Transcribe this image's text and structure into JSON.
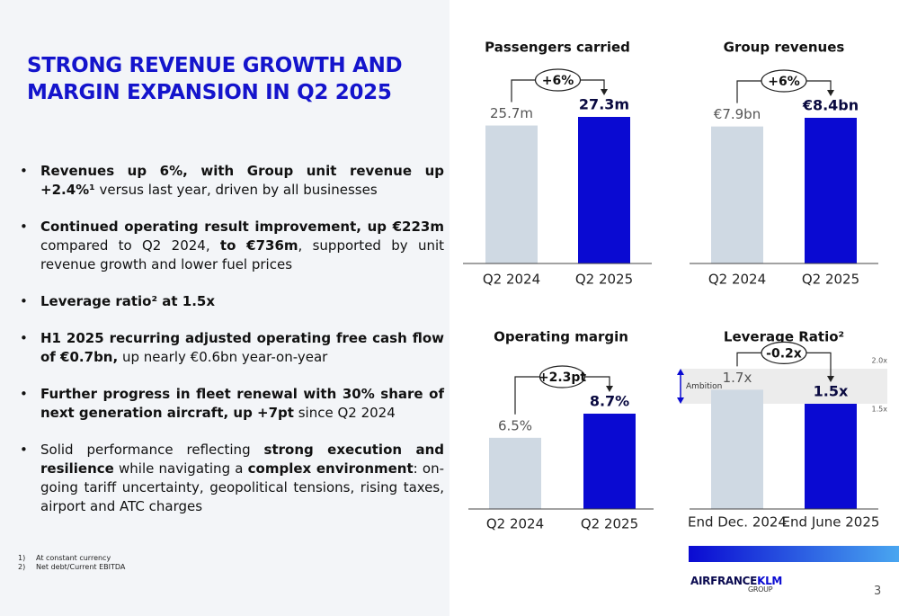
{
  "title": "STRONG REVENUE GROWTH AND MARGIN EXPANSION IN Q2 2025",
  "bullets": [
    [
      {
        "text": "Revenues up 6%, with Group unit revenue up +2.4%¹",
        "bold": true
      },
      {
        "text": " versus last year, driven by all businesses",
        "bold": false
      }
    ],
    [
      {
        "text": "Continued operating result improvement, up €223m",
        "bold": true
      },
      {
        "text": " compared to Q2 2024, ",
        "bold": false
      },
      {
        "text": "to €736m",
        "bold": true
      },
      {
        "text": ", supported by unit revenue growth and lower fuel prices",
        "bold": false
      }
    ],
    [
      {
        "text": "Leverage ratio² at 1.5x",
        "bold": true
      }
    ],
    [
      {
        "text": "H1 2025 recurring adjusted operating free cash flow of €0.7bn,",
        "bold": true
      },
      {
        "text": " up nearly €0.6bn year-on-year",
        "bold": false
      }
    ],
    [
      {
        "text": "Further progress in fleet renewal with 30% share of next generation aircraft, up +7pt",
        "bold": true
      },
      {
        "text": " since Q2 2024",
        "bold": false
      }
    ],
    [
      {
        "text": "Solid performance reflecting ",
        "bold": false
      },
      {
        "text": "strong execution and resilience",
        "bold": true
      },
      {
        "text": " while navigating a ",
        "bold": false
      },
      {
        "text": "complex environment",
        "bold": true
      },
      {
        "text": ": on-going tariff uncertainty, geopolitical tensions, rising taxes, airport and ATC charges",
        "bold": false
      }
    ]
  ],
  "footnotes": [
    {
      "mark": "1)",
      "text": "At constant currency"
    },
    {
      "mark": "2)",
      "text": "Net debt/Current EBITDA"
    }
  ],
  "logo": {
    "brand": "AIRFRANCE",
    "brand2": "KLM",
    "group": "GROUP"
  },
  "page_number": "3",
  "chart_data": [
    {
      "type": "bar",
      "title": "Passengers carried",
      "categories": [
        "Q2 2024",
        "Q2 2025"
      ],
      "values": [
        25.7,
        27.3
      ],
      "value_labels": [
        "25.7m",
        "27.3m"
      ],
      "colors": [
        "#cfd9e3",
        "#0a0ad2"
      ],
      "annotation": "+6%"
    },
    {
      "type": "bar",
      "title": "Group revenues",
      "categories": [
        "Q2 2024",
        "Q2 2025"
      ],
      "values": [
        7.9,
        8.4
      ],
      "value_labels": [
        "€7.9bn",
        "€8.4bn"
      ],
      "colors": [
        "#cfd9e3",
        "#0a0ad2"
      ],
      "annotation": "+6%"
    },
    {
      "type": "bar",
      "title": "Operating margin",
      "categories": [
        "Q2 2024",
        "Q2 2025"
      ],
      "values": [
        6.5,
        8.7
      ],
      "value_labels": [
        "6.5%",
        "8.7%"
      ],
      "colors": [
        "#cfd9e3",
        "#0a0ad2"
      ],
      "annotation": "+2.3pt"
    },
    {
      "type": "bar",
      "title": "Leverage Ratio²",
      "categories": [
        "End Dec. 2024",
        "End June 2025"
      ],
      "values": [
        1.7,
        1.5
      ],
      "value_labels": [
        "1.7x",
        "1.5x"
      ],
      "colors": [
        "#cfd9e3",
        "#0a0ad2"
      ],
      "annotation": "-0.2x",
      "ylim": [
        0,
        2
      ],
      "yticks": [
        {
          "value": 2,
          "label": "2.0x"
        },
        {
          "value": 1.5,
          "label": "1.5x"
        }
      ],
      "band_label": "Ambition"
    }
  ]
}
